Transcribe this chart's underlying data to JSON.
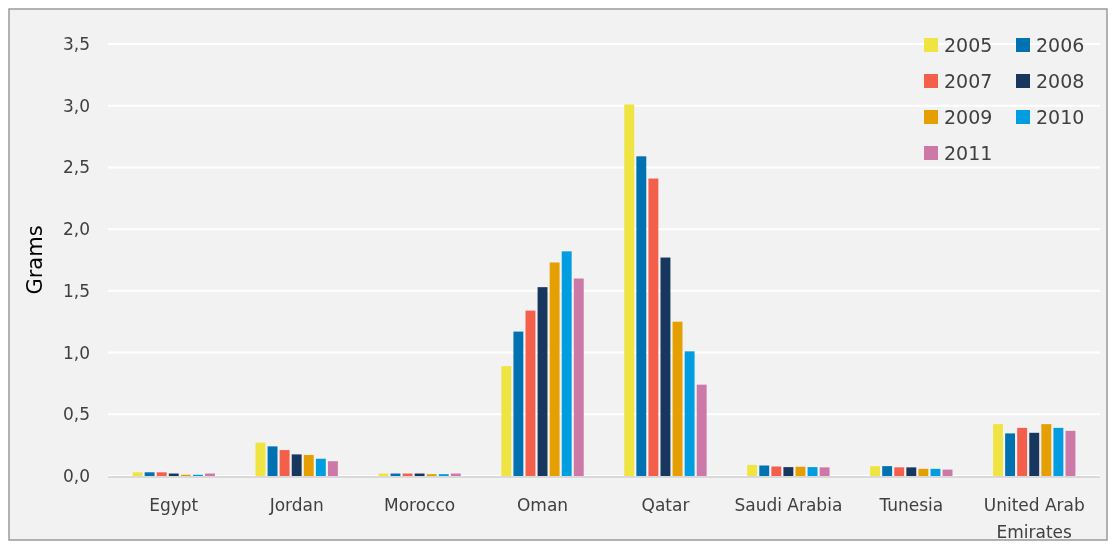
{
  "chart_data": {
    "type": "bar",
    "ylabel": "Grams",
    "categories": [
      "Egypt",
      "Jordan",
      "Morocco",
      "Oman",
      "Qatar",
      "Saudi Arabia",
      "Tunesia",
      "United Arab Emirates"
    ],
    "series": [
      {
        "name": "2005",
        "color": "#f0e442",
        "values": [
          0.03,
          0.27,
          0.02,
          0.89,
          3.01,
          0.09,
          0.08,
          0.42
        ]
      },
      {
        "name": "2006",
        "color": "#0072b2",
        "values": [
          0.03,
          0.24,
          0.02,
          1.17,
          2.59,
          0.085,
          0.08,
          0.345
        ]
      },
      {
        "name": "2007",
        "color": "#f45f4b",
        "values": [
          0.03,
          0.21,
          0.02,
          1.34,
          2.41,
          0.077,
          0.07,
          0.39
        ]
      },
      {
        "name": "2008",
        "color": "#17375e",
        "values": [
          0.02,
          0.175,
          0.02,
          1.53,
          1.77,
          0.072,
          0.07,
          0.35
        ]
      },
      {
        "name": "2009",
        "color": "#e69f00",
        "values": [
          0.01,
          0.17,
          0.015,
          1.73,
          1.25,
          0.075,
          0.058,
          0.42
        ]
      },
      {
        "name": "2010",
        "color": "#009ee0",
        "values": [
          0.01,
          0.14,
          0.015,
          1.82,
          1.01,
          0.072,
          0.058,
          0.39
        ]
      },
      {
        "name": "2011",
        "color": "#cc79a7",
        "values": [
          0.02,
          0.12,
          0.02,
          1.6,
          0.74,
          0.07,
          0.052,
          0.366
        ]
      }
    ],
    "ylim": [
      0,
      3.5
    ],
    "yticks": [
      {
        "value": 0,
        "label": "0,0"
      },
      {
        "value": 0.5,
        "label": "0,5"
      },
      {
        "value": 1,
        "label": "1,0"
      },
      {
        "value": 1.5,
        "label": "1,5"
      },
      {
        "value": 2,
        "label": "2,0"
      },
      {
        "value": 2.5,
        "label": "2,5"
      },
      {
        "value": 3,
        "label": "3,0"
      },
      {
        "value": 3.5,
        "label": "3,5"
      }
    ],
    "grid": "y",
    "legend": "top right"
  }
}
